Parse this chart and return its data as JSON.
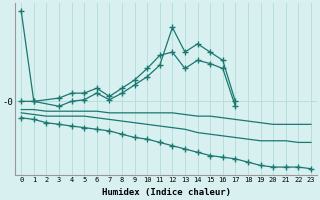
{
  "xlabel": "Humidex (Indice chaleur)",
  "x": [
    0,
    1,
    2,
    3,
    4,
    5,
    6,
    7,
    8,
    9,
    10,
    11,
    12,
    13,
    14,
    15,
    16,
    17,
    18,
    19,
    20,
    21,
    22,
    23
  ],
  "line1_y": [
    5.5,
    0,
    null,
    -0.3,
    0,
    0.1,
    0.5,
    0.1,
    0.5,
    1.0,
    1.5,
    2.2,
    4.5,
    3.0,
    3.5,
    3.0,
    2.5,
    0,
    null,
    null,
    null,
    null,
    null,
    null
  ],
  "line2_y": [
    0,
    0,
    null,
    0.2,
    0.5,
    0.5,
    0.8,
    0.3,
    0.8,
    1.3,
    2.0,
    2.8,
    3.0,
    2.0,
    2.5,
    2.3,
    2.0,
    -0.3,
    null,
    null,
    null,
    null,
    null,
    null
  ],
  "line3_y": [
    -0.5,
    -0.5,
    -0.6,
    -0.6,
    -0.6,
    -0.6,
    -0.6,
    -0.7,
    -0.7,
    -0.7,
    -0.7,
    -0.7,
    -0.7,
    -0.8,
    -0.9,
    -0.9,
    -1.0,
    -1.1,
    -1.2,
    -1.3,
    -1.4,
    -1.4,
    -1.4,
    -1.4
  ],
  "line4_y": [
    -0.7,
    -0.8,
    -0.9,
    -0.9,
    -0.9,
    -0.9,
    -1.0,
    -1.1,
    -1.2,
    -1.3,
    -1.4,
    -1.5,
    -1.6,
    -1.7,
    -1.9,
    -2.0,
    -2.1,
    -2.2,
    -2.3,
    -2.4,
    -2.4,
    -2.4,
    -2.5,
    -2.5
  ],
  "line5_y": [
    -1.0,
    -1.1,
    -1.3,
    -1.4,
    -1.5,
    -1.6,
    -1.7,
    -1.8,
    -2.0,
    -2.2,
    -2.3,
    -2.5,
    -2.7,
    -2.9,
    -3.1,
    -3.3,
    -3.4,
    -3.5,
    -3.7,
    -3.9,
    -4.0,
    -4.0,
    -4.0,
    -4.1
  ],
  "bg_color": "#d8f0f0",
  "grid_color": "#b8dede",
  "line_color": "#1a7870",
  "marker": "+",
  "markersize": 4,
  "linewidth": 0.9,
  "ylim": [
    -4.5,
    6.0
  ],
  "ytick_pos": [
    0
  ],
  "ytick_labels": [
    "-0"
  ]
}
